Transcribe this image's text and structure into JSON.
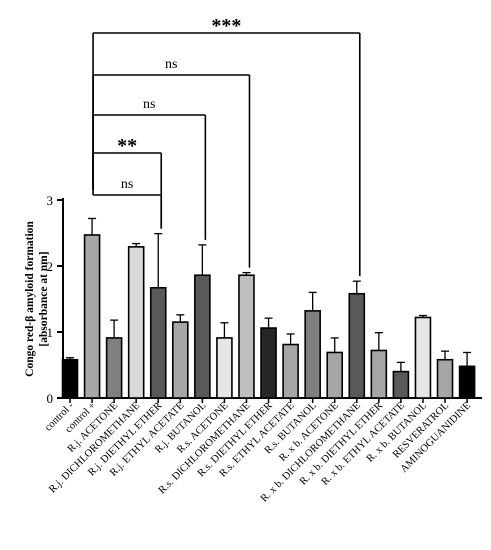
{
  "chart_data": {
    "type": "bar",
    "ylabel_line1": "Congo red-β amyloid formation",
    "ylabel_line2": "[absorbance at nm]",
    "ylim": [
      0,
      3
    ],
    "yticks": [
      "0",
      "1",
      "2",
      "3"
    ],
    "categories": [
      "control -",
      "control +",
      "R.j. ACETONE",
      "R.j. DICHLOROMETHANE",
      "R.j. DIETHYL ETHER",
      "R.j. ETHYL ACETATE",
      "R.j. BUTANOL",
      "R.s. ACETONE",
      "R.s. DICHLOROMETHANE",
      "R.s. DIETHYL ETHER",
      "R.s. ETHYL ACETATE",
      "R.s. BUTANOL",
      "R. x b. ACETONE",
      "R. x b. DICHLOROMETHANE",
      "R. x b. DIETHYL ETHER",
      "R. x b. ETHYL ACETATE",
      "R. x b. BUTANOL",
      "RESVERATROL",
      "AMINOGUANIDINE"
    ],
    "values": [
      0.58,
      2.47,
      0.91,
      2.29,
      1.67,
      1.15,
      1.86,
      0.91,
      1.86,
      1.06,
      0.81,
      1.32,
      0.69,
      1.58,
      0.72,
      0.4,
      1.22,
      0.58,
      0.48
    ],
    "errors": [
      0.03,
      0.25,
      0.27,
      0.05,
      0.82,
      0.11,
      0.46,
      0.23,
      0.04,
      0.15,
      0.16,
      0.28,
      0.22,
      0.19,
      0.27,
      0.14,
      0.03,
      0.13,
      0.21
    ],
    "colors": [
      "#000000",
      "#a6a6a6",
      "#7f7f7f",
      "#d9d9d9",
      "#595959",
      "#a6a6a6",
      "#595959",
      "#e6e6e6",
      "#bfbfbf",
      "#262626",
      "#a6a6a6",
      "#7f7f7f",
      "#a6a6a6",
      "#595959",
      "#a6a6a6",
      "#595959",
      "#e6e6e6",
      "#a6a6a6",
      "#000000"
    ],
    "significance": [
      {
        "label": "ns",
        "from": 1,
        "to": 4
      },
      {
        "label": "**",
        "from": 1,
        "to": 4
      },
      {
        "label": "ns",
        "from": 1,
        "to": 6
      },
      {
        "label": "ns",
        "from": 1,
        "to": 8
      },
      {
        "label": "***",
        "from": 1,
        "to": 13
      }
    ]
  }
}
